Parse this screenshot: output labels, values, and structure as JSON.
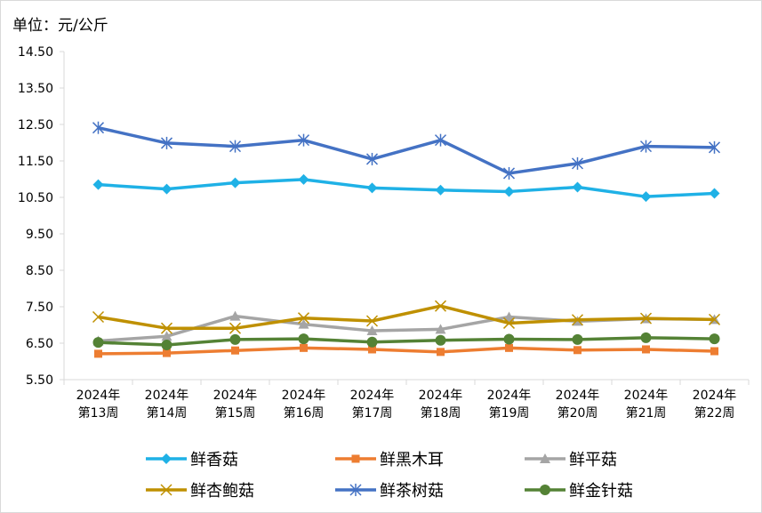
{
  "header": {
    "unit_label": "单位：元/公斤"
  },
  "chart_data": {
    "type": "line",
    "title": "",
    "ylabel": "单位：元/公斤",
    "xlabel": "",
    "ylim": [
      5.5,
      14.5
    ],
    "y_ticks": [
      "14.50",
      "13.50",
      "12.50",
      "11.50",
      "10.50",
      "9.50",
      "8.50",
      "7.50",
      "6.50",
      "5.50"
    ],
    "y_tick_values": [
      14.5,
      13.5,
      12.5,
      11.5,
      10.5,
      9.5,
      8.5,
      7.5,
      6.5,
      5.5
    ],
    "categories": [
      [
        "2024年",
        "第13周"
      ],
      [
        "2024年",
        "第14周"
      ],
      [
        "2024年",
        "第15周"
      ],
      [
        "2024年",
        "第16周"
      ],
      [
        "2024年",
        "第17周"
      ],
      [
        "2024年",
        "第18周"
      ],
      [
        "2024年",
        "第19周"
      ],
      [
        "2024年",
        "第20周"
      ],
      [
        "2024年",
        "第21周"
      ],
      [
        "2024年",
        "第22周"
      ]
    ],
    "grid": false,
    "legend_position": "bottom",
    "series": [
      {
        "name": "鲜香菇",
        "color": "#1FB1E6",
        "marker": "diamond",
        "values": [
          10.85,
          10.73,
          10.9,
          10.99,
          10.76,
          10.7,
          10.66,
          10.78,
          10.52,
          10.61
        ]
      },
      {
        "name": "鲜黑木耳",
        "color": "#ED7D31",
        "marker": "square",
        "values": [
          6.21,
          6.23,
          6.3,
          6.37,
          6.33,
          6.26,
          6.37,
          6.31,
          6.33,
          6.28
        ]
      },
      {
        "name": "鲜平菇",
        "color": "#A5A5A5",
        "marker": "triangle",
        "values": [
          6.56,
          6.69,
          7.24,
          7.02,
          6.84,
          6.88,
          7.22,
          7.1,
          7.17,
          7.15
        ]
      },
      {
        "name": "鲜杏鲍菇",
        "color": "#BF9000",
        "marker": "x",
        "values": [
          7.22,
          6.91,
          6.91,
          7.19,
          7.11,
          7.52,
          7.05,
          7.14,
          7.18,
          7.15
        ]
      },
      {
        "name": "鲜茶树菇",
        "color": "#4472C4",
        "marker": "star",
        "values": [
          12.41,
          11.99,
          11.9,
          12.07,
          11.55,
          12.07,
          11.16,
          11.43,
          11.9,
          11.87
        ]
      },
      {
        "name": "鲜金针菇",
        "color": "#548235",
        "marker": "circle",
        "values": [
          6.52,
          6.45,
          6.6,
          6.62,
          6.53,
          6.58,
          6.61,
          6.6,
          6.65,
          6.62
        ]
      }
    ]
  }
}
